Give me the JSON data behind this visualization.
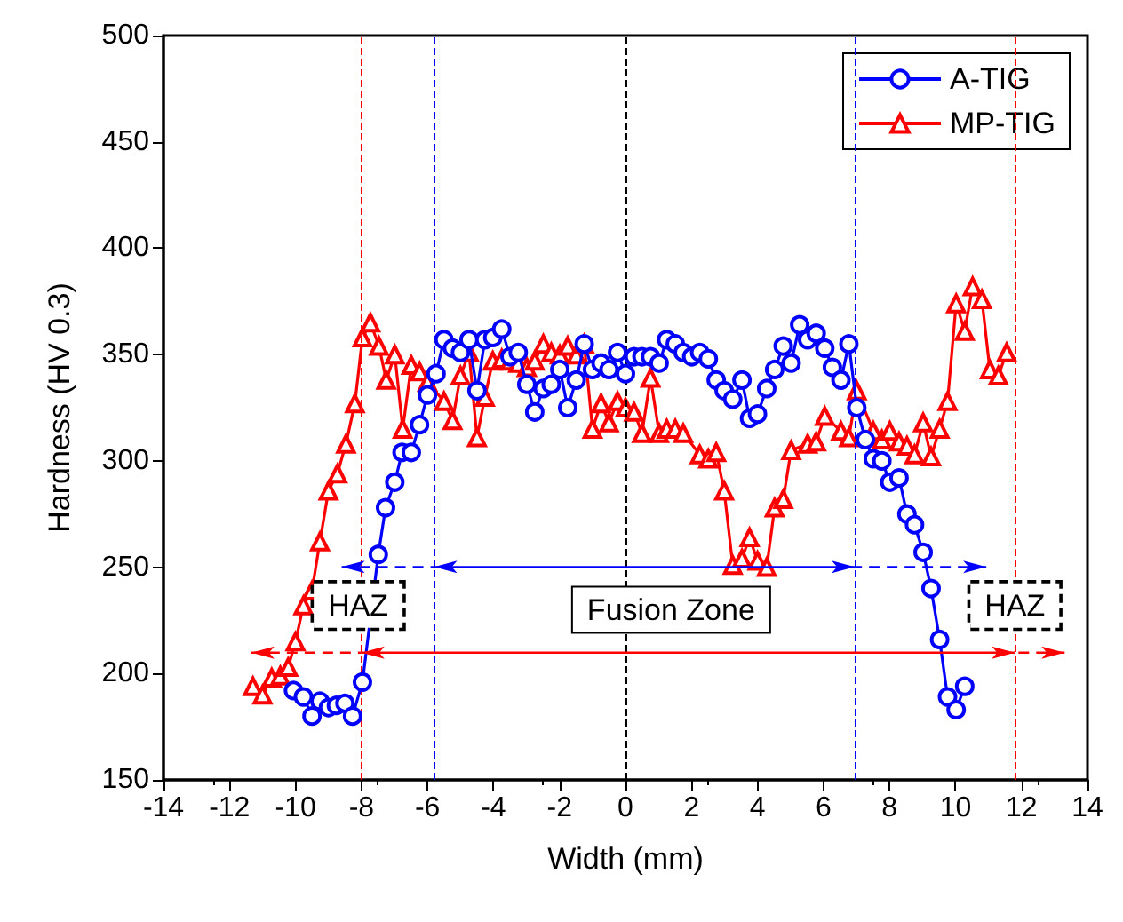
{
  "chart_data": {
    "type": "line",
    "xlabel": "Width (mm)",
    "ylabel": "Hardness (HV 0.3)",
    "xlim": [
      -14,
      14
    ],
    "xticks": [
      -14,
      -12,
      -10,
      -8,
      -6,
      -4,
      -2,
      0,
      2,
      4,
      6,
      8,
      10,
      12,
      14
    ],
    "ylim": [
      150,
      500
    ],
    "yticks": [
      150,
      200,
      250,
      300,
      350,
      400,
      450,
      500
    ],
    "grid": false,
    "legend": "top right",
    "series": [
      {
        "name": "A-TIG",
        "color": "#0000ff",
        "marker": "circle",
        "x": [
          -10.06,
          -9.76,
          -9.5,
          -9.26,
          -9.0,
          -8.76,
          -8.5,
          -8.27,
          -7.97,
          -7.49,
          -7.27,
          -6.99,
          -6.77,
          -6.49,
          -6.24,
          -6.0,
          -5.74,
          -5.5,
          -5.24,
          -5.0,
          -4.74,
          -4.5,
          -4.26,
          -4.02,
          -3.75,
          -3.5,
          -3.25,
          -2.99,
          -2.75,
          -2.49,
          -2.25,
          -1.99,
          -1.75,
          -1.49,
          -1.25,
          -1.0,
          -0.74,
          -0.5,
          -0.24,
          0,
          0.26,
          0.5,
          0.76,
          1.02,
          1.25,
          1.51,
          1.75,
          2.01,
          2.25,
          2.51,
          2.75,
          2.99,
          3.25,
          3.53,
          3.76,
          4.0,
          4.28,
          4.52,
          4.78,
          5.02,
          5.28,
          5.52,
          5.78,
          6.04,
          6.27,
          6.53,
          6.77,
          7.01,
          7.27,
          7.51,
          7.77,
          8.01,
          8.29,
          8.53,
          8.76,
          9.02,
          9.26,
          9.52,
          9.76,
          10.02,
          10.28
        ],
        "values": [
          192,
          189,
          180,
          187,
          184,
          185,
          186,
          180,
          196,
          256,
          278,
          290,
          304,
          304,
          317,
          331,
          341,
          357,
          353,
          351,
          357,
          333,
          357,
          358,
          362,
          349,
          351,
          336,
          323,
          334,
          336,
          343,
          325,
          338,
          355,
          343,
          346,
          343,
          351,
          341,
          349,
          349,
          349,
          346,
          357,
          355,
          351,
          349,
          351,
          348,
          338,
          333,
          329,
          338,
          320,
          322,
          334,
          343,
          354,
          346,
          364,
          357,
          360,
          353,
          344,
          338,
          355,
          325,
          310,
          301,
          300,
          290,
          292,
          275,
          270,
          257,
          240,
          216,
          189,
          183,
          194
        ]
      },
      {
        "name": "MP-TIG",
        "color": "#ff0000",
        "marker": "triangle",
        "x": [
          -11.29,
          -11.0,
          -10.72,
          -10.46,
          -10.22,
          -10.0,
          -9.76,
          -9.5,
          -9.26,
          -9.0,
          -8.73,
          -8.47,
          -8.2,
          -7.97,
          -7.73,
          -7.47,
          -7.25,
          -6.99,
          -6.75,
          -6.49,
          -6.24,
          -6.0,
          -5.5,
          -5.24,
          -5.0,
          -4.74,
          -4.5,
          -4.26,
          -4.02,
          -3.75,
          -3.5,
          -3.25,
          -2.99,
          -2.75,
          -2.49,
          -2.25,
          -1.99,
          -1.75,
          -1.49,
          -1.25,
          -1.0,
          -0.74,
          -0.5,
          -0.24,
          0,
          0.26,
          0.5,
          0.76,
          1.02,
          1.25,
          1.51,
          1.75,
          2.25,
          2.51,
          2.75,
          2.99,
          3.25,
          3.53,
          3.76,
          4.0,
          4.28,
          4.52,
          4.78,
          5.02,
          5.52,
          5.78,
          6.04,
          6.53,
          6.77,
          7.01,
          7.51,
          7.77,
          8.01,
          8.29,
          8.53,
          8.76,
          9.02,
          9.26,
          9.52,
          9.76,
          10.02,
          10.28,
          10.52,
          10.8,
          11.04,
          11.3,
          11.55
        ],
        "values": [
          194,
          190,
          198,
          199,
          203,
          215,
          232,
          239,
          262,
          286,
          294,
          308,
          327,
          358,
          365,
          354,
          338,
          350,
          315,
          345,
          342,
          337,
          328,
          319,
          340,
          351,
          311,
          330,
          347,
          348,
          347,
          346,
          344,
          347,
          355,
          351,
          350,
          354,
          350,
          355,
          315,
          327,
          318,
          328,
          325,
          323,
          313,
          339,
          313,
          315,
          315,
          313,
          303,
          301,
          304,
          286,
          251,
          254,
          264,
          253,
          250,
          278,
          282,
          305,
          308,
          309,
          321,
          314,
          311,
          333,
          314,
          310,
          314,
          309,
          307,
          303,
          318,
          302,
          315,
          328,
          374,
          361,
          382,
          376,
          343,
          340,
          351
        ]
      }
    ],
    "ref_lines": [
      {
        "axis": "x",
        "value": -5.8,
        "color": "#0000ff",
        "line_style": "dashed"
      },
      {
        "axis": "x",
        "value": 6.95,
        "color": "#0000ff",
        "line_style": "dashed"
      },
      {
        "axis": "x",
        "value": -8,
        "color": "#ff0000",
        "line_style": "dashed"
      },
      {
        "axis": "x",
        "value": 11.8,
        "color": "#ff0000",
        "line_style": "dashed"
      },
      {
        "axis": "x",
        "value": 0,
        "color": "#000000",
        "line_style": "dashed"
      }
    ],
    "annotations": [
      {
        "text": "HAZ",
        "x": -8.1,
        "y": 232
      },
      "Fusion Zone",
      {
        "text": "HAZ",
        "x": 11.8,
        "y": 232
      }
    ]
  }
}
